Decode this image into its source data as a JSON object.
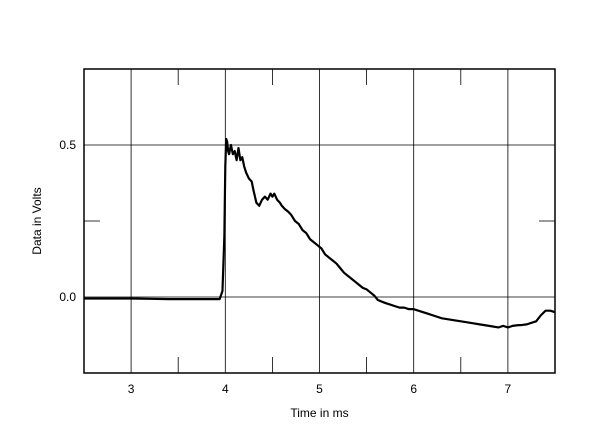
{
  "chart_data": {
    "type": "line",
    "title": "",
    "xlabel": "Time in ms",
    "ylabel": "Data in Volts",
    "xlim": [
      2.5,
      7.5
    ],
    "ylim": [
      -0.25,
      0.75
    ],
    "grid": true,
    "x_ticks": [
      3,
      4,
      5,
      6,
      7
    ],
    "x_tick_labels": [
      "3",
      "4",
      "5",
      "6",
      "7"
    ],
    "x_minor_ticks": [
      3.5,
      4.5,
      5.5,
      6.5
    ],
    "y_ticks": [
      0.0,
      0.5
    ],
    "y_tick_labels": [
      "0.0",
      "0.5"
    ],
    "y_minor_ticks": [
      -0.25,
      0.25,
      0.75
    ],
    "colors": {
      "line": "#000000",
      "grid": "#000000",
      "frame": "#000000",
      "background": "#ffffff"
    },
    "series": [
      {
        "x": [
          2.5,
          2.8,
          3.0,
          3.2,
          3.4,
          3.6,
          3.8,
          3.94,
          3.97,
          3.99,
          4.0,
          4.01,
          4.02,
          4.03,
          4.04,
          4.06,
          4.08,
          4.1,
          4.12,
          4.14,
          4.16,
          4.18,
          4.2,
          4.22,
          4.25,
          4.28,
          4.3,
          4.33,
          4.36,
          4.39,
          4.42,
          4.45,
          4.48,
          4.5,
          4.52,
          4.55,
          4.58,
          4.6,
          4.63,
          4.67,
          4.7,
          4.74,
          4.78,
          4.82,
          4.86,
          4.9,
          4.94,
          4.98,
          5.02,
          5.06,
          5.1,
          5.14,
          5.18,
          5.22,
          5.26,
          5.3,
          5.34,
          5.38,
          5.42,
          5.46,
          5.5,
          5.54,
          5.58,
          5.62,
          5.66,
          5.7,
          5.75,
          5.8,
          5.85,
          5.9,
          5.95,
          6.0,
          6.05,
          6.1,
          6.15,
          6.2,
          6.3,
          6.4,
          6.5,
          6.6,
          6.7,
          6.8,
          6.9,
          6.95,
          7.0,
          7.05,
          7.1,
          7.15,
          7.2,
          7.25,
          7.3,
          7.35,
          7.4,
          7.45,
          7.5
        ],
        "y": [
          -0.005,
          -0.005,
          -0.005,
          -0.006,
          -0.007,
          -0.007,
          -0.007,
          -0.007,
          0.02,
          0.2,
          0.43,
          0.52,
          0.51,
          0.48,
          0.47,
          0.5,
          0.47,
          0.48,
          0.45,
          0.49,
          0.45,
          0.46,
          0.43,
          0.41,
          0.39,
          0.38,
          0.35,
          0.31,
          0.3,
          0.32,
          0.33,
          0.32,
          0.34,
          0.33,
          0.34,
          0.32,
          0.31,
          0.3,
          0.29,
          0.28,
          0.27,
          0.25,
          0.24,
          0.22,
          0.21,
          0.19,
          0.18,
          0.17,
          0.16,
          0.14,
          0.13,
          0.12,
          0.11,
          0.095,
          0.08,
          0.07,
          0.06,
          0.05,
          0.04,
          0.03,
          0.025,
          0.015,
          0.005,
          -0.01,
          -0.015,
          -0.02,
          -0.025,
          -0.03,
          -0.035,
          -0.035,
          -0.04,
          -0.04,
          -0.045,
          -0.05,
          -0.055,
          -0.06,
          -0.07,
          -0.075,
          -0.08,
          -0.085,
          -0.09,
          -0.095,
          -0.1,
          -0.095,
          -0.1,
          -0.095,
          -0.093,
          -0.092,
          -0.09,
          -0.085,
          -0.08,
          -0.06,
          -0.045,
          -0.045,
          -0.05
        ]
      }
    ]
  }
}
